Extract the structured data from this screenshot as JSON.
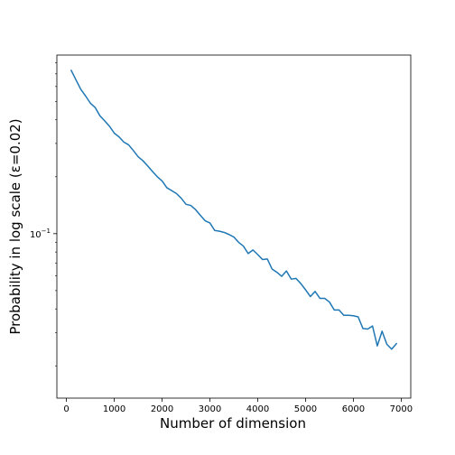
{
  "chart_data": {
    "type": "line",
    "title": "",
    "xlabel": "Number of dimension",
    "ylabel": "Probability in log scale (ε=0.02)",
    "xlim": [
      -200,
      7200
    ],
    "ylim": [
      0.0135,
      0.88
    ],
    "yscale": "log",
    "grid": false,
    "line_color": "#1f77b4",
    "xticks": [
      0,
      1000,
      2000,
      3000,
      4000,
      5000,
      6000,
      7000
    ],
    "xtick_labels": [
      "0",
      "1000",
      "2000",
      "3000",
      "4000",
      "5000",
      "6000",
      "7000"
    ],
    "yticks": [
      {
        "value": 0.1,
        "base": "10",
        "exponent": "−1"
      }
    ],
    "series": [
      {
        "x": [
          100,
          200,
          300,
          400,
          500,
          600,
          700,
          800,
          900,
          1000,
          1100,
          1200,
          1300,
          1400,
          1500,
          1600,
          1700,
          1800,
          1900,
          2000,
          2100,
          2200,
          2300,
          2400,
          2500,
          2600,
          2700,
          2800,
          2900,
          3000,
          3100,
          3200,
          3300,
          3400,
          3500,
          3600,
          3700,
          3800,
          3900,
          4000,
          4100,
          4200,
          4300,
          4400,
          4500,
          4600,
          4700,
          4800,
          4900,
          5000,
          5100,
          5200,
          5300,
          5400,
          5500,
          5600,
          5700,
          5800,
          5900,
          6000,
          6100,
          6200,
          6300,
          6400,
          6500,
          6600,
          6700,
          6800,
          6900
        ],
        "values": [
          0.73,
          0.65,
          0.58,
          0.535,
          0.49,
          0.465,
          0.42,
          0.395,
          0.37,
          0.34,
          0.325,
          0.305,
          0.295,
          0.275,
          0.255,
          0.243,
          0.228,
          0.213,
          0.2,
          0.19,
          0.175,
          0.169,
          0.163,
          0.154,
          0.143,
          0.141,
          0.134,
          0.125,
          0.117,
          0.114,
          0.104,
          0.103,
          0.1015,
          0.099,
          0.096,
          0.09,
          0.086,
          0.0785,
          0.082,
          0.0775,
          0.073,
          0.0735,
          0.065,
          0.0625,
          0.0595,
          0.0635,
          0.0575,
          0.058,
          0.0545,
          0.0505,
          0.0465,
          0.0495,
          0.0455,
          0.0455,
          0.0435,
          0.0395,
          0.0395,
          0.037,
          0.037,
          0.0368,
          0.0363,
          0.0315,
          0.0313,
          0.0325,
          0.0255,
          0.0305,
          0.026,
          0.0245,
          0.0262
        ]
      }
    ]
  }
}
